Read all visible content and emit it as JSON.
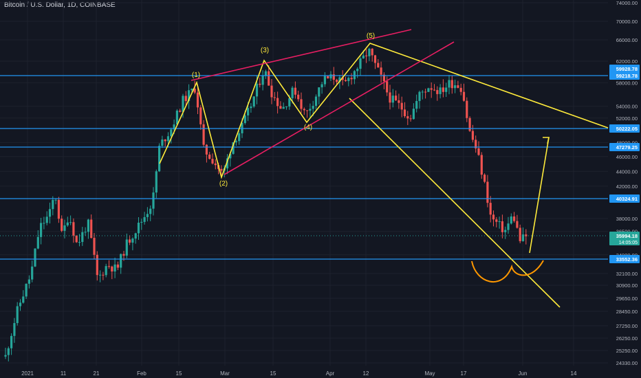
{
  "header": {
    "symbol_title": "Bitcoin / U.S. Dollar, 1D, COINBASE"
  },
  "colors": {
    "background": "#131722",
    "grid": "#1e222d",
    "text": "#b2b5be",
    "bull": "#26a69a",
    "bear": "#ef5350",
    "hline": "#2196f3",
    "yellow": "#ffeb3b",
    "pink": "#e91e63",
    "orange": "#ff9800",
    "price_badge": "#26a69a",
    "level_badge": "#2196f3"
  },
  "chart_data": {
    "type": "candlestick",
    "title": "Bitcoin / U.S. Dollar, 1D, COINBASE",
    "x_tick_labels": [
      "2021",
      "11",
      "21",
      "Feb",
      "15",
      "Mar",
      "15",
      "Apr",
      "12",
      "May",
      "17",
      "Jun",
      "14"
    ],
    "y_tick_labels": [
      "74000.00",
      "70000.00",
      "66000.00",
      "62000.00",
      "58000.00",
      "54000.00",
      "52000.00",
      "48000.00",
      "46000.00",
      "44000.00",
      "42000.00",
      "38000.00",
      "36500.00",
      "34000.00",
      "32100.00",
      "30900.00",
      "29650.00",
      "28450.00",
      "27250.00",
      "26250.00",
      "25250.00",
      "24330.00"
    ],
    "horizontal_levels": [
      {
        "label": "59218.78",
        "value": 59218.78
      },
      {
        "label": "50222.05",
        "value": 50222.05
      },
      {
        "label": "47279.25",
        "value": 47279.25
      },
      {
        "label": "40324.91",
        "value": 40324.91
      },
      {
        "label": "33552.36",
        "value": 33552.36
      }
    ],
    "extra_level_label": "59928.78",
    "current_price": {
      "label": "35994.18",
      "countdown": "14:05:05"
    },
    "wave_labels": [
      "(1)",
      "(2)",
      "(3)",
      "(4)",
      "(5)"
    ],
    "grid": true,
    "y_axis_position": "right",
    "x_axis_position": "bottom",
    "candles": []
  }
}
